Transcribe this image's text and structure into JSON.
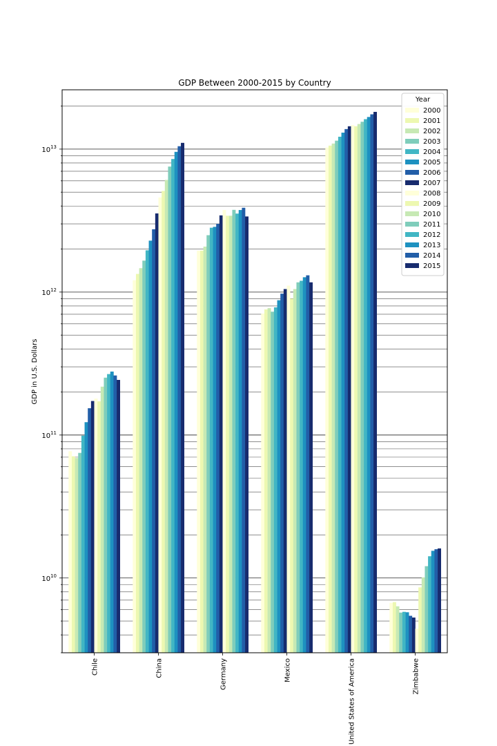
{
  "chart_data": {
    "type": "bar",
    "title": "GDP Between 2000-2015 by Country",
    "ylabel": "GDP in U.S. Dollars",
    "xlabel": "",
    "yscale": "log",
    "ylim": [
      3000000000,
      26000000000000
    ],
    "y_tick_labels": [
      {
        "base": "10",
        "exp": "10",
        "value": 10000000000
      },
      {
        "base": "10",
        "exp": "11",
        "value": 100000000000
      },
      {
        "base": "10",
        "exp": "12",
        "value": 1000000000000
      },
      {
        "base": "10",
        "exp": "13",
        "value": 10000000000000
      }
    ],
    "grid": "y (major and minor)",
    "legend": {
      "title": "Year",
      "placement": "top-right"
    },
    "categories": [
      "Chile",
      "China",
      "Germany",
      "Mexico",
      "United States of America",
      "Zimbabwe"
    ],
    "series": [
      {
        "name": "2000",
        "color": "#ffffd9",
        "values": [
          77000000000,
          1210000000000,
          1950000000000,
          708000000000,
          10250000000000,
          6700000000
        ]
      },
      {
        "name": "2001",
        "color": "#edf8b1",
        "values": [
          71000000000,
          1340000000000,
          1950000000000,
          756000000000,
          10580000000000,
          6780000000
        ]
      },
      {
        "name": "2002",
        "color": "#c7e9b4",
        "values": [
          69000000000,
          1470000000000,
          2080000000000,
          772000000000,
          10940000000000,
          6340000000
        ]
      },
      {
        "name": "2003",
        "color": "#7fcdbb",
        "values": [
          75000000000,
          1660000000000,
          2500000000000,
          729000000000,
          11460000000000,
          5730000000
        ]
      },
      {
        "name": "2004",
        "color": "#41b6c4",
        "values": [
          99000000000,
          1960000000000,
          2820000000000,
          782000000000,
          12210000000000,
          5800000000
        ]
      },
      {
        "name": "2005",
        "color": "#1d91c0",
        "values": [
          123000000000,
          2290000000000,
          2860000000000,
          877000000000,
          13040000000000,
          5760000000
        ]
      },
      {
        "name": "2006",
        "color": "#225ea8",
        "values": [
          154000000000,
          2750000000000,
          3000000000000,
          975000000000,
          13810000000000,
          5440000000
        ]
      },
      {
        "name": "2007",
        "color": "#172b6e",
        "values": [
          173000000000,
          3550000000000,
          3440000000000,
          1050000000000,
          14450000000000,
          5290000000
        ]
      },
      {
        "name": "2008",
        "color": "#ffffd9",
        "values": [
          180000000000,
          4590000000000,
          3750000000000,
          1110000000000,
          14710000000000,
          4420000000
        ]
      },
      {
        "name": "2009",
        "color": "#edf8b1",
        "values": [
          172000000000,
          5100000000000,
          3420000000000,
          900000000000,
          14450000000000,
          8600000000
        ]
      },
      {
        "name": "2010",
        "color": "#c7e9b4",
        "values": [
          218000000000,
          6090000000000,
          3420000000000,
          1050000000000,
          14990000000000,
          10100000000
        ]
      },
      {
        "name": "2011",
        "color": "#7fcdbb",
        "values": [
          252000000000,
          7550000000000,
          3760000000000,
          1170000000000,
          15540000000000,
          12100000000
        ]
      },
      {
        "name": "2012",
        "color": "#41b6c4",
        "values": [
          267000000000,
          8530000000000,
          3540000000000,
          1200000000000,
          16200000000000,
          14200000000
        ]
      },
      {
        "name": "2013",
        "color": "#1d91c0",
        "values": [
          278000000000,
          9570000000000,
          3750000000000,
          1270000000000,
          16780000000000,
          15500000000
        ]
      },
      {
        "name": "2014",
        "color": "#225ea8",
        "values": [
          261000000000,
          10480000000000,
          3890000000000,
          1310000000000,
          17520000000000,
          15900000000
        ]
      },
      {
        "name": "2015",
        "color": "#172b6e",
        "values": [
          243000000000,
          11060000000000,
          3380000000000,
          1170000000000,
          18220000000000,
          16100000000
        ]
      }
    ]
  }
}
